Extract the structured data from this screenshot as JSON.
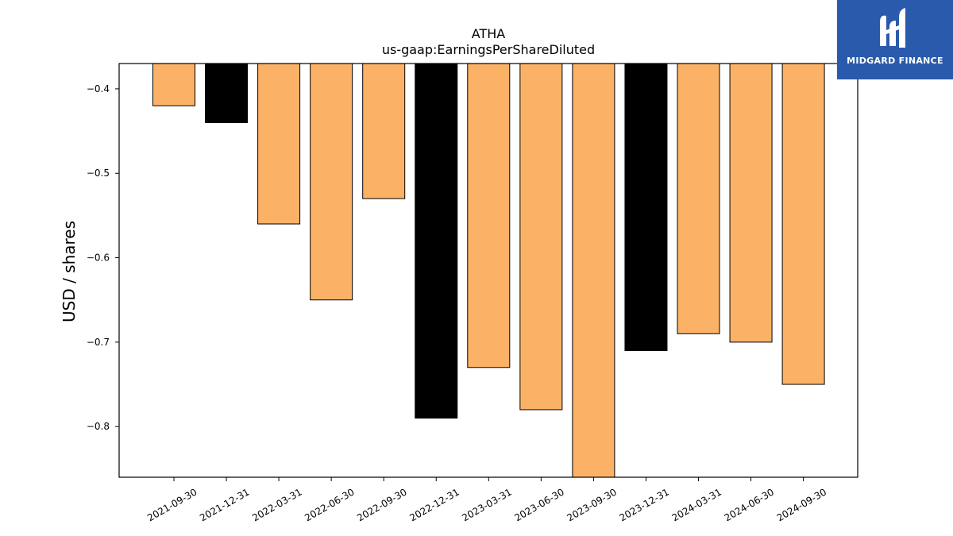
{
  "chart_data": {
    "type": "bar",
    "title": "ATHA",
    "subtitle": "us-gaap:EarningsPerShareDiluted",
    "ylabel": "USD / shares",
    "xlabel": "",
    "ylim": [
      -0.86,
      -0.37
    ],
    "yticks": [
      "−0.4",
      "−0.5",
      "−0.6",
      "−0.7",
      "−0.8"
    ],
    "ytick_values": [
      -0.4,
      -0.5,
      -0.6,
      -0.7,
      -0.8
    ],
    "grid": false,
    "categories": [
      "2021-09-30",
      "2021-12-31",
      "2022-03-31",
      "2022-06-30",
      "2022-09-30",
      "2022-12-31",
      "2023-03-31",
      "2023-06-30",
      "2023-09-30",
      "2023-12-31",
      "2024-03-31",
      "2024-06-30",
      "2024-09-30"
    ],
    "values": [
      -0.42,
      -0.44,
      -0.56,
      -0.65,
      -0.53,
      -0.79,
      -0.73,
      -0.78,
      -0.86,
      -0.71,
      -0.69,
      -0.7,
      -0.75
    ],
    "bar_colors": [
      "#fbb266",
      "#000000",
      "#fbb266",
      "#fbb266",
      "#fbb266",
      "#000000",
      "#fbb266",
      "#fbb266",
      "#fbb266",
      "#000000",
      "#fbb266",
      "#fbb266",
      "#fbb266"
    ]
  },
  "logo": {
    "text": "MIDGARD FINANCE",
    "icon": "midgard-logo-icon",
    "color": "#2a5aab"
  }
}
